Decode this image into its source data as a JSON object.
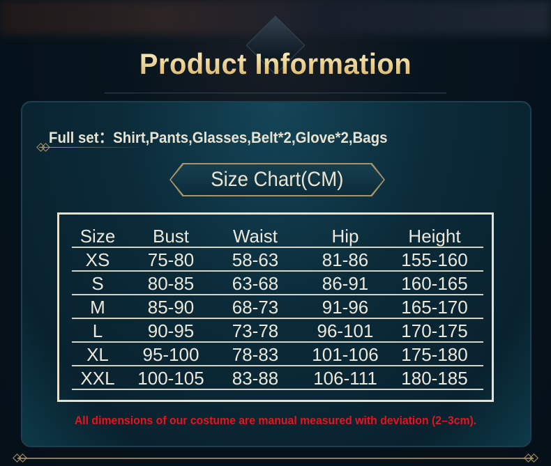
{
  "title": "Product Information",
  "full_set": "Full set：Shirt,Pants,Glasses,Belt*2,Glove*2,Bags",
  "size_chart_label": "Size Chart(CM)",
  "table": {
    "headers": [
      "Size",
      "Bust",
      "Waist",
      "Hip",
      "Height"
    ],
    "rows": [
      [
        "XS",
        "75-80",
        "58-63",
        "81-86",
        "155-160"
      ],
      [
        "S",
        "80-85",
        "63-68",
        "86-91",
        "160-165"
      ],
      [
        "M",
        "85-90",
        "68-73",
        "91-96",
        "165-170"
      ],
      [
        "L",
        "90-95",
        "73-78",
        "96-101",
        "170-175"
      ],
      [
        "XL",
        "95-100",
        "78-83",
        "101-106",
        "175-180"
      ],
      [
        "XXL",
        "100-105",
        "83-88",
        "106-111",
        "180-185"
      ]
    ]
  },
  "note": "All dimensions of our costume are manual measured with deviation (2–3cm).",
  "colors": {
    "background": "#07141d",
    "title_gold": "#f0d690",
    "note_red": "#e8141a",
    "table_border": "#e6e2d2"
  }
}
